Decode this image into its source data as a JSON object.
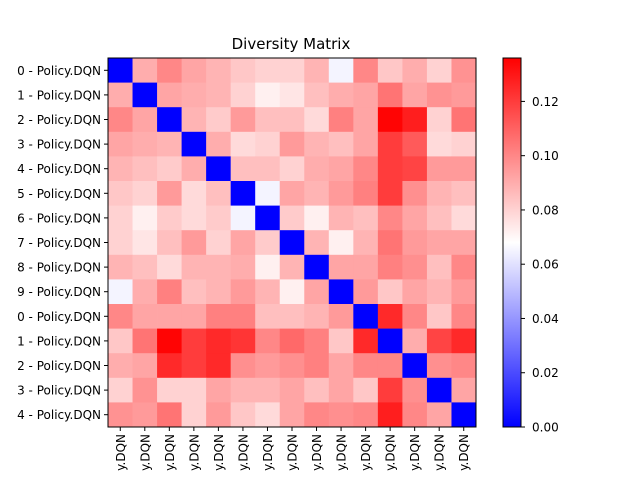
{
  "chart_data": {
    "type": "heatmap",
    "title": "Diversity Matrix",
    "xlabel": "",
    "ylabel": "",
    "row_labels": [
      "0 - Policy.DQN",
      "1 - Policy.DQN",
      "2 - Policy.DQN",
      "3 - Policy.DQN",
      "4 - Policy.DQN",
      "5 - Policy.DQN",
      "6 - Policy.DQN",
      "7 - Policy.DQN",
      "8 - Policy.DQN",
      "9 - Policy.DQN",
      "0 - Policy.DQN",
      "1 - Policy.DQN",
      "2 - Policy.DQN",
      "3 - Policy.DQN",
      "4 - Policy.DQN"
    ],
    "col_labels": [
      "y.DQN",
      "y.DQN",
      "y.DQN",
      "y.DQN",
      "y.DQN",
      "y.DQN",
      "y.DQN",
      "y.DQN",
      "y.DQN",
      "y.DQN",
      "y.DQN",
      "y.DQN",
      "y.DQN",
      "y.DQN",
      "y.DQN"
    ],
    "values": [
      [
        0.0,
        0.09,
        0.1,
        0.092,
        0.088,
        0.083,
        0.08,
        0.08,
        0.088,
        0.065,
        0.1,
        0.083,
        0.09,
        0.08,
        0.097
      ],
      [
        0.09,
        0.0,
        0.092,
        0.09,
        0.088,
        0.08,
        0.072,
        0.075,
        0.085,
        0.09,
        0.092,
        0.105,
        0.092,
        0.097,
        0.095
      ],
      [
        0.1,
        0.092,
        0.0,
        0.088,
        0.082,
        0.095,
        0.085,
        0.085,
        0.078,
        0.102,
        0.092,
        0.135,
        0.128,
        0.08,
        0.105
      ],
      [
        0.092,
        0.09,
        0.088,
        0.0,
        0.09,
        0.078,
        0.08,
        0.095,
        0.088,
        0.085,
        0.092,
        0.12,
        0.112,
        0.078,
        0.08
      ],
      [
        0.088,
        0.085,
        0.082,
        0.09,
        0.0,
        0.085,
        0.085,
        0.08,
        0.09,
        0.092,
        0.1,
        0.12,
        0.118,
        0.095,
        0.095
      ],
      [
        0.083,
        0.08,
        0.095,
        0.078,
        0.085,
        0.0,
        0.065,
        0.092,
        0.088,
        0.095,
        0.102,
        0.12,
        0.098,
        0.088,
        0.085
      ],
      [
        0.08,
        0.072,
        0.082,
        0.078,
        0.082,
        0.065,
        0.0,
        0.082,
        0.072,
        0.088,
        0.085,
        0.1,
        0.092,
        0.085,
        0.078
      ],
      [
        0.08,
        0.075,
        0.085,
        0.095,
        0.08,
        0.092,
        0.082,
        0.0,
        0.088,
        0.072,
        0.088,
        0.105,
        0.095,
        0.092,
        0.092
      ],
      [
        0.088,
        0.085,
        0.078,
        0.088,
        0.088,
        0.09,
        0.072,
        0.088,
        0.0,
        0.092,
        0.092,
        0.102,
        0.098,
        0.085,
        0.1
      ],
      [
        0.065,
        0.09,
        0.102,
        0.085,
        0.088,
        0.095,
        0.088,
        0.072,
        0.092,
        0.0,
        0.095,
        0.083,
        0.092,
        0.088,
        0.095
      ],
      [
        0.1,
        0.092,
        0.092,
        0.092,
        0.102,
        0.102,
        0.085,
        0.085,
        0.088,
        0.095,
        0.0,
        0.125,
        0.1,
        0.083,
        0.1
      ],
      [
        0.083,
        0.105,
        0.135,
        0.12,
        0.125,
        0.122,
        0.1,
        0.108,
        0.102,
        0.083,
        0.125,
        0.0,
        0.09,
        0.118,
        0.125
      ],
      [
        0.09,
        0.092,
        0.125,
        0.12,
        0.125,
        0.098,
        0.095,
        0.098,
        0.102,
        0.092,
        0.1,
        0.1,
        0.0,
        0.098,
        0.1
      ],
      [
        0.08,
        0.097,
        0.08,
        0.08,
        0.092,
        0.088,
        0.088,
        0.092,
        0.085,
        0.092,
        0.083,
        0.12,
        0.098,
        0.0,
        0.092
      ],
      [
        0.097,
        0.095,
        0.105,
        0.08,
        0.095,
        0.083,
        0.078,
        0.092,
        0.1,
        0.098,
        0.1,
        0.128,
        0.1,
        0.092,
        0.0
      ]
    ],
    "colormap": "bwr",
    "vmin": 0.0,
    "vmax": 0.136,
    "colorbar_ticks": [
      "0.00",
      "0.02",
      "0.04",
      "0.06",
      "0.08",
      "0.10",
      "0.12"
    ],
    "colorbar_tick_values": [
      0.0,
      0.02,
      0.04,
      0.06,
      0.08,
      0.1,
      0.12
    ]
  }
}
